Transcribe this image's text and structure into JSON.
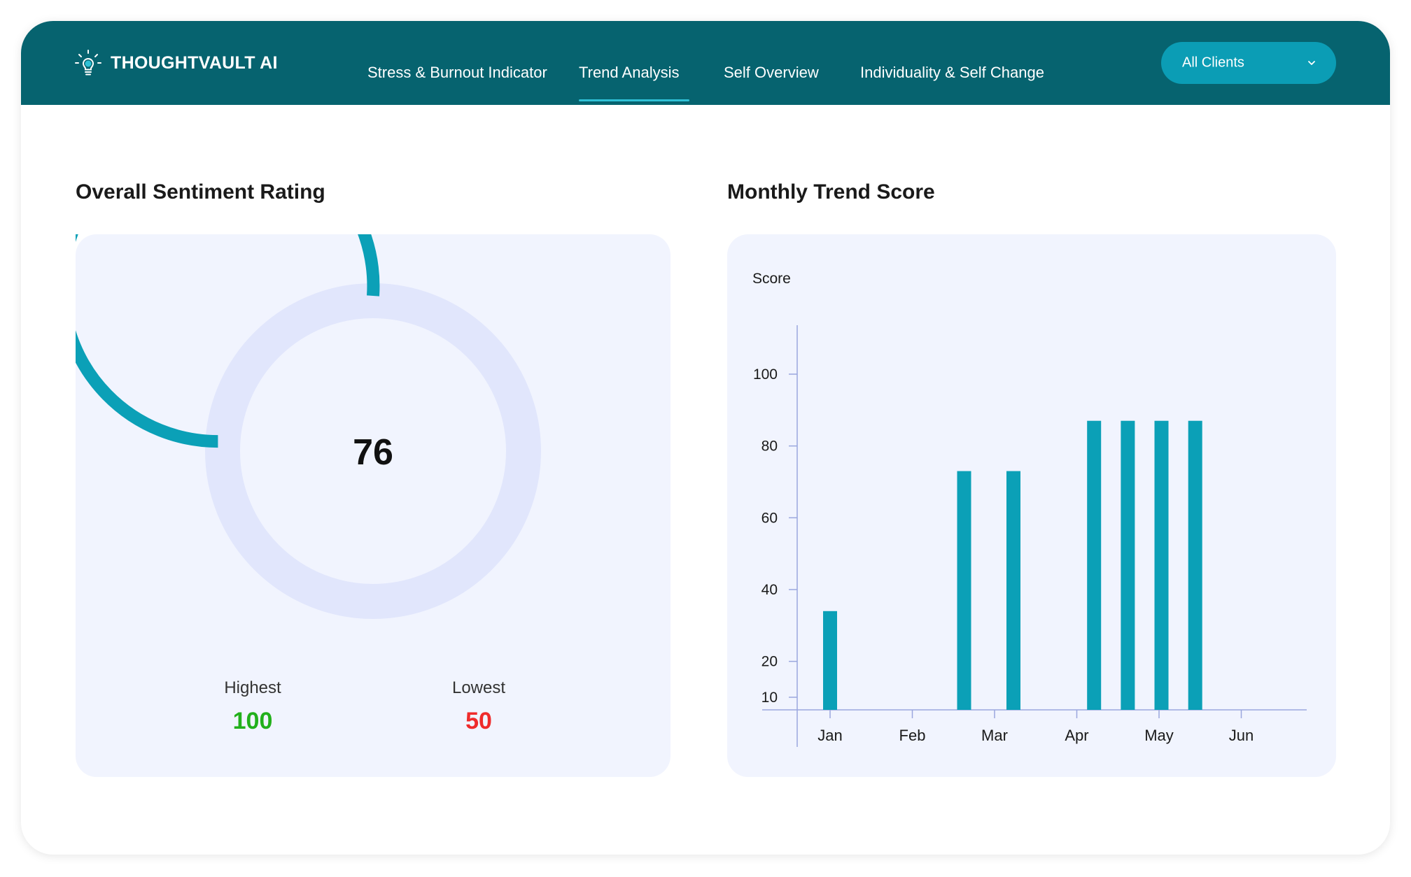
{
  "app": {
    "brand": "THOUGHTVAULT AI",
    "brand_icon": "lightbulb-icon",
    "colors": {
      "header": "#06636F",
      "accent": "#0B9DB5",
      "highest": "#22B01B",
      "lowest": "#EF2B2B"
    }
  },
  "nav": {
    "items": [
      {
        "label": "Stress & Burnout Indicator",
        "active": false
      },
      {
        "label": "Trend Analysis",
        "active": true
      },
      {
        "label": "Self Overview",
        "active": false
      },
      {
        "label": "Individuality & Self Change",
        "active": false
      }
    ],
    "client_select": {
      "value": "All Clients",
      "icon": "chevron-down-icon"
    }
  },
  "sentiment": {
    "title": "Overall Sentiment Rating",
    "value": "76",
    "progress_fraction": 0.76,
    "highest_label": "Highest",
    "highest_value": "100",
    "lowest_label": "Lowest",
    "lowest_value": "50"
  },
  "trend": {
    "title": "Monthly Trend Score"
  },
  "chart_data": {
    "type": "bar",
    "ylabel": "Score",
    "y_ticks": [
      10,
      20,
      40,
      60,
      80,
      100
    ],
    "x_ticks": [
      "Jan",
      "Feb",
      "Mar",
      "Apr",
      "May",
      "Jun"
    ],
    "x_range": [
      0.6,
      6.8
    ],
    "bars": [
      {
        "x": 1.0,
        "y": 34
      },
      {
        "x": 2.63,
        "y": 73
      },
      {
        "x": 3.23,
        "y": 73
      },
      {
        "x": 4.21,
        "y": 87
      },
      {
        "x": 4.62,
        "y": 87
      },
      {
        "x": 5.03,
        "y": 87
      },
      {
        "x": 5.44,
        "y": 87
      }
    ],
    "grid": false,
    "color": "#0BA0B7"
  }
}
